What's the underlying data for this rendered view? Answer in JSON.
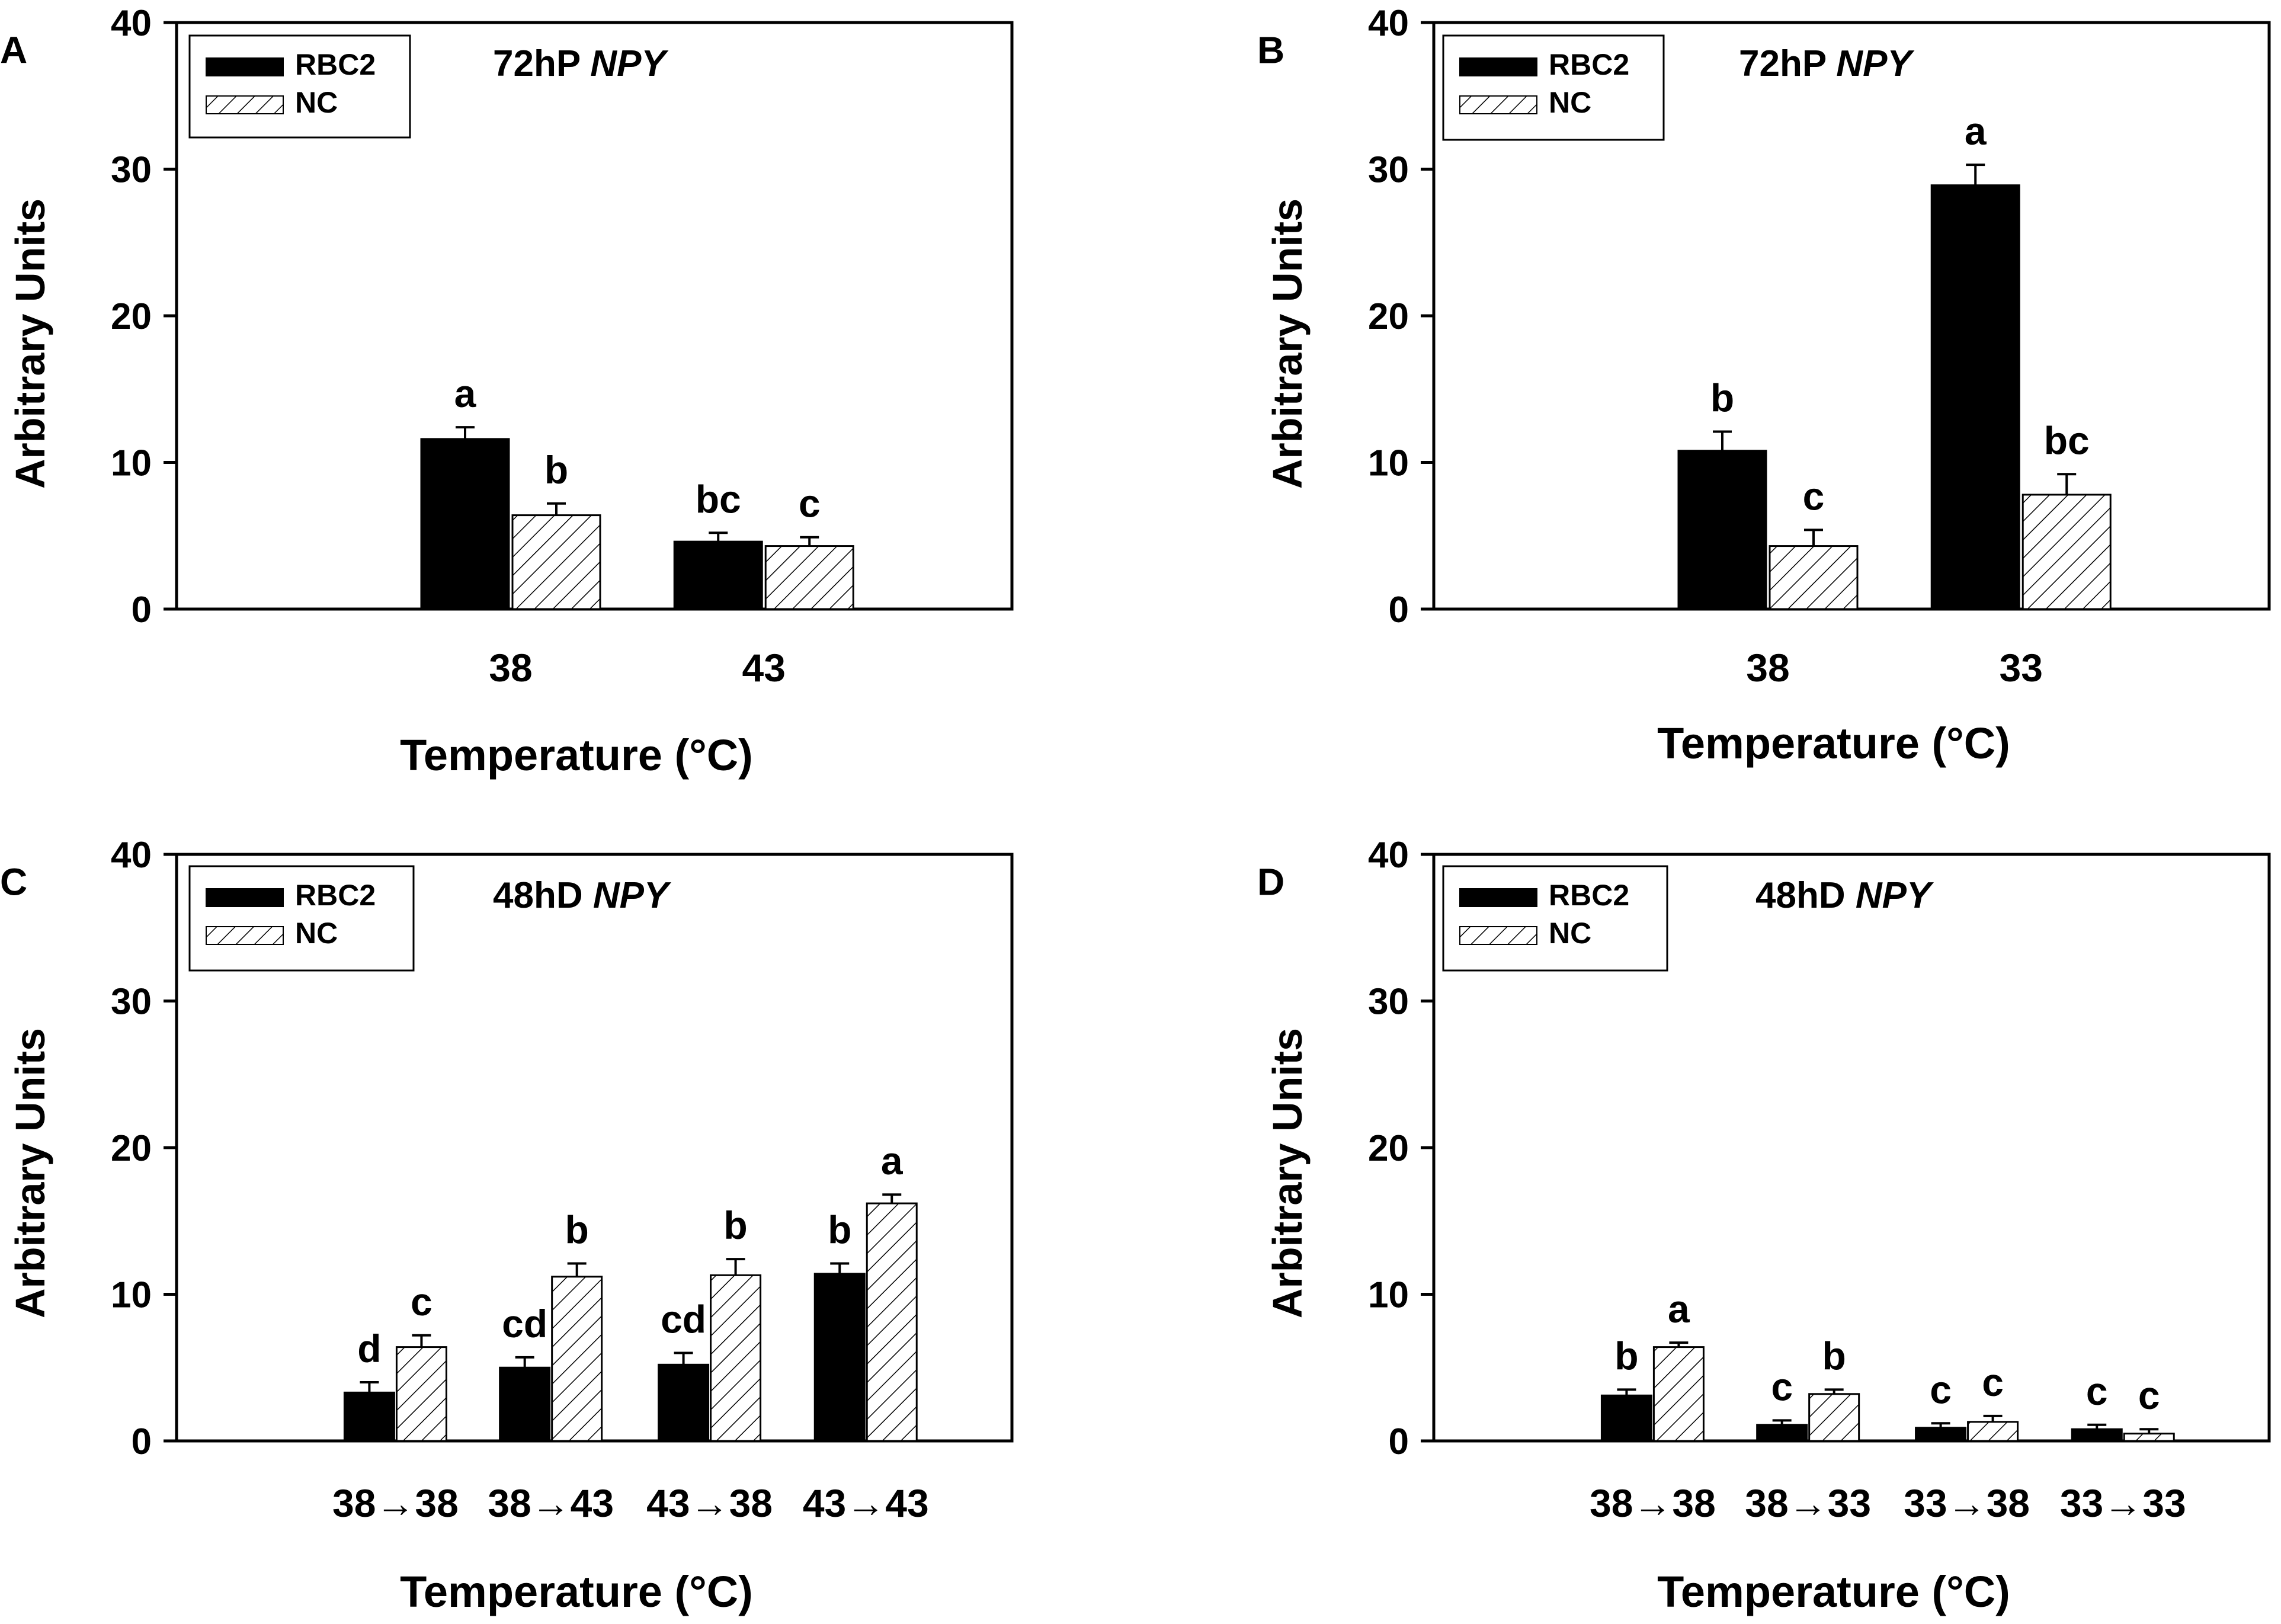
{
  "panels": [
    {
      "panel_label": "A",
      "title_prefix": "72hP ",
      "title_gene": "NPY",
      "ylabel": "Arbitrary Units",
      "xlabel": "Temperature (°C)",
      "legend": [
        "RBC2",
        "NC"
      ]
    },
    {
      "panel_label": "B",
      "title_prefix": "72hP ",
      "title_gene": "NPY",
      "ylabel": "Arbitrary Units",
      "xlabel": "Temperature (°C)",
      "legend": [
        "RBC2",
        "NC"
      ]
    },
    {
      "panel_label": "C",
      "title_prefix": "48hD ",
      "title_gene": "NPY",
      "ylabel": "Arbitrary Units",
      "xlabel": "Temperature (°C)",
      "legend": [
        "RBC2",
        "NC"
      ]
    },
    {
      "panel_label": "D",
      "title_prefix": "48hD ",
      "title_gene": "NPY",
      "ylabel": "Arbitrary Units",
      "xlabel": "Temperature (°C)",
      "legend": [
        "RBC2",
        "NC"
      ]
    }
  ],
  "chart_data": [
    {
      "type": "bar",
      "title": "72hP NPY",
      "xlabel": "Temperature (°C)",
      "ylabel": "Arbitrary Units",
      "ylim": [
        0,
        40
      ],
      "yticks": [
        0,
        10,
        20,
        30,
        40
      ],
      "categories": [
        "38",
        "43"
      ],
      "series": [
        {
          "name": "RBC2",
          "values": [
            11.6,
            4.6
          ],
          "errors": [
            0.8,
            0.6
          ],
          "labels": [
            "a",
            "bc"
          ]
        },
        {
          "name": "NC",
          "values": [
            6.4,
            4.3
          ],
          "errors": [
            0.8,
            0.6
          ],
          "labels": [
            "b",
            "c"
          ]
        }
      ]
    },
    {
      "type": "bar",
      "title": "72hP NPY",
      "xlabel": "Temperature (°C)",
      "ylabel": "Arbitrary Units",
      "ylim": [
        0,
        40
      ],
      "yticks": [
        0,
        10,
        20,
        30,
        40
      ],
      "categories": [
        "38",
        "33"
      ],
      "series": [
        {
          "name": "RBC2",
          "values": [
            10.8,
            28.9
          ],
          "errors": [
            1.3,
            1.4
          ],
          "labels": [
            "b",
            "a"
          ]
        },
        {
          "name": "NC",
          "values": [
            4.3,
            7.8
          ],
          "errors": [
            1.1,
            1.4
          ],
          "labels": [
            "c",
            "bc"
          ]
        }
      ]
    },
    {
      "type": "bar",
      "title": "48hD NPY",
      "xlabel": "Temperature (°C)",
      "ylabel": "Arbitrary Units",
      "ylim": [
        0,
        40
      ],
      "yticks": [
        0,
        10,
        20,
        30,
        40
      ],
      "categories": [
        "38→38",
        "38→43",
        "43→38",
        "43→43"
      ],
      "series": [
        {
          "name": "RBC2",
          "values": [
            3.3,
            5.0,
            5.2,
            11.4
          ],
          "errors": [
            0.7,
            0.7,
            0.8,
            0.7
          ],
          "labels": [
            "d",
            "cd",
            "cd",
            "b"
          ]
        },
        {
          "name": "NC",
          "values": [
            6.4,
            11.2,
            11.3,
            16.2
          ],
          "errors": [
            0.8,
            0.9,
            1.1,
            0.6
          ],
          "labels": [
            "c",
            "b",
            "b",
            "a"
          ]
        }
      ]
    },
    {
      "type": "bar",
      "title": "48hD NPY",
      "xlabel": "Temperature (°C)",
      "ylabel": "Arbitrary Units",
      "ylim": [
        0,
        40
      ],
      "yticks": [
        0,
        10,
        20,
        30,
        40
      ],
      "categories": [
        "38→38",
        "38→33",
        "33→38",
        "33→33"
      ],
      "series": [
        {
          "name": "RBC2",
          "values": [
            3.1,
            1.1,
            0.9,
            0.8
          ],
          "errors": [
            0.4,
            0.3,
            0.3,
            0.3
          ],
          "labels": [
            "b",
            "c",
            "c",
            "c"
          ]
        },
        {
          "name": "NC",
          "values": [
            6.4,
            3.2,
            1.3,
            0.5
          ],
          "errors": [
            0.3,
            0.3,
            0.4,
            0.3
          ],
          "labels": [
            "a",
            "b",
            "c",
            "c"
          ]
        }
      ]
    }
  ]
}
